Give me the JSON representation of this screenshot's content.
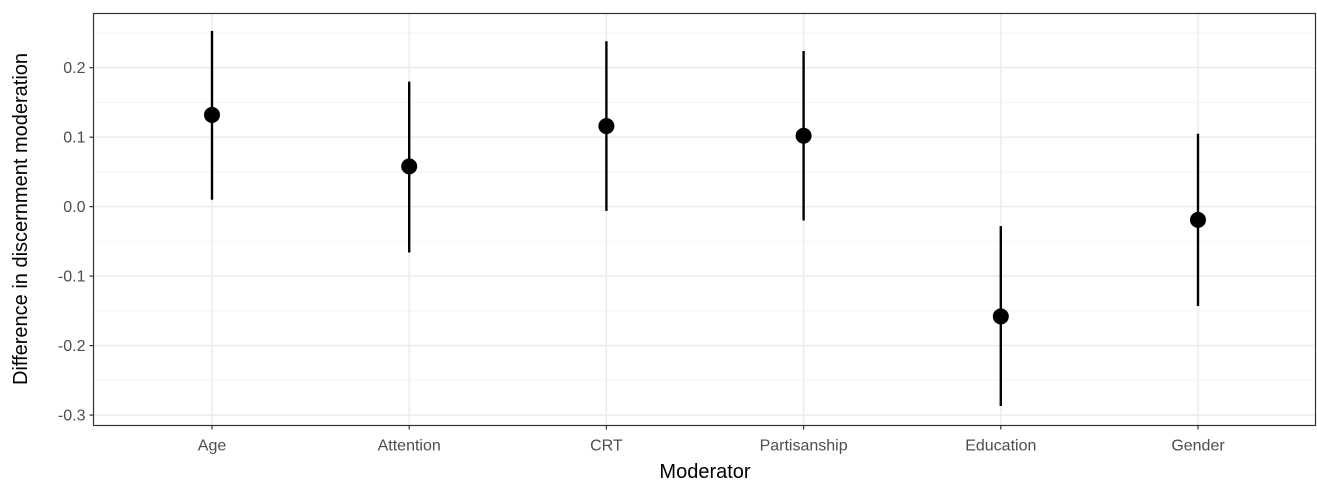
{
  "chart_data": {
    "type": "scatter",
    "subtype": "pointrange",
    "title": "",
    "xlabel": "Moderator",
    "ylabel": "Difference in discernment moderation",
    "categories": [
      "Age",
      "Attention",
      "CRT",
      "Partisanship",
      "Education",
      "Gender"
    ],
    "series": [
      {
        "values": [
          0.132,
          0.058,
          0.116,
          0.102,
          -0.158,
          -0.019
        ],
        "lower": [
          0.01,
          -0.066,
          -0.006,
          -0.02,
          -0.287,
          -0.143
        ],
        "upper": [
          0.253,
          0.18,
          0.238,
          0.224,
          -0.028,
          0.105
        ]
      }
    ],
    "ylim": [
      -0.315,
      0.278
    ],
    "yticks": [
      -0.3,
      -0.2,
      -0.1,
      0.0,
      0.1,
      0.2
    ],
    "ytick_labels": [
      "-0.3",
      "-0.2",
      "-0.1",
      "0.0",
      "0.1",
      "0.2"
    ],
    "grid": true,
    "legend": "none",
    "colors": {
      "point": "#000000",
      "grid_major": "#ebebeb",
      "grid_minor": "#f5f5f5",
      "panel_border": "#333333"
    }
  }
}
